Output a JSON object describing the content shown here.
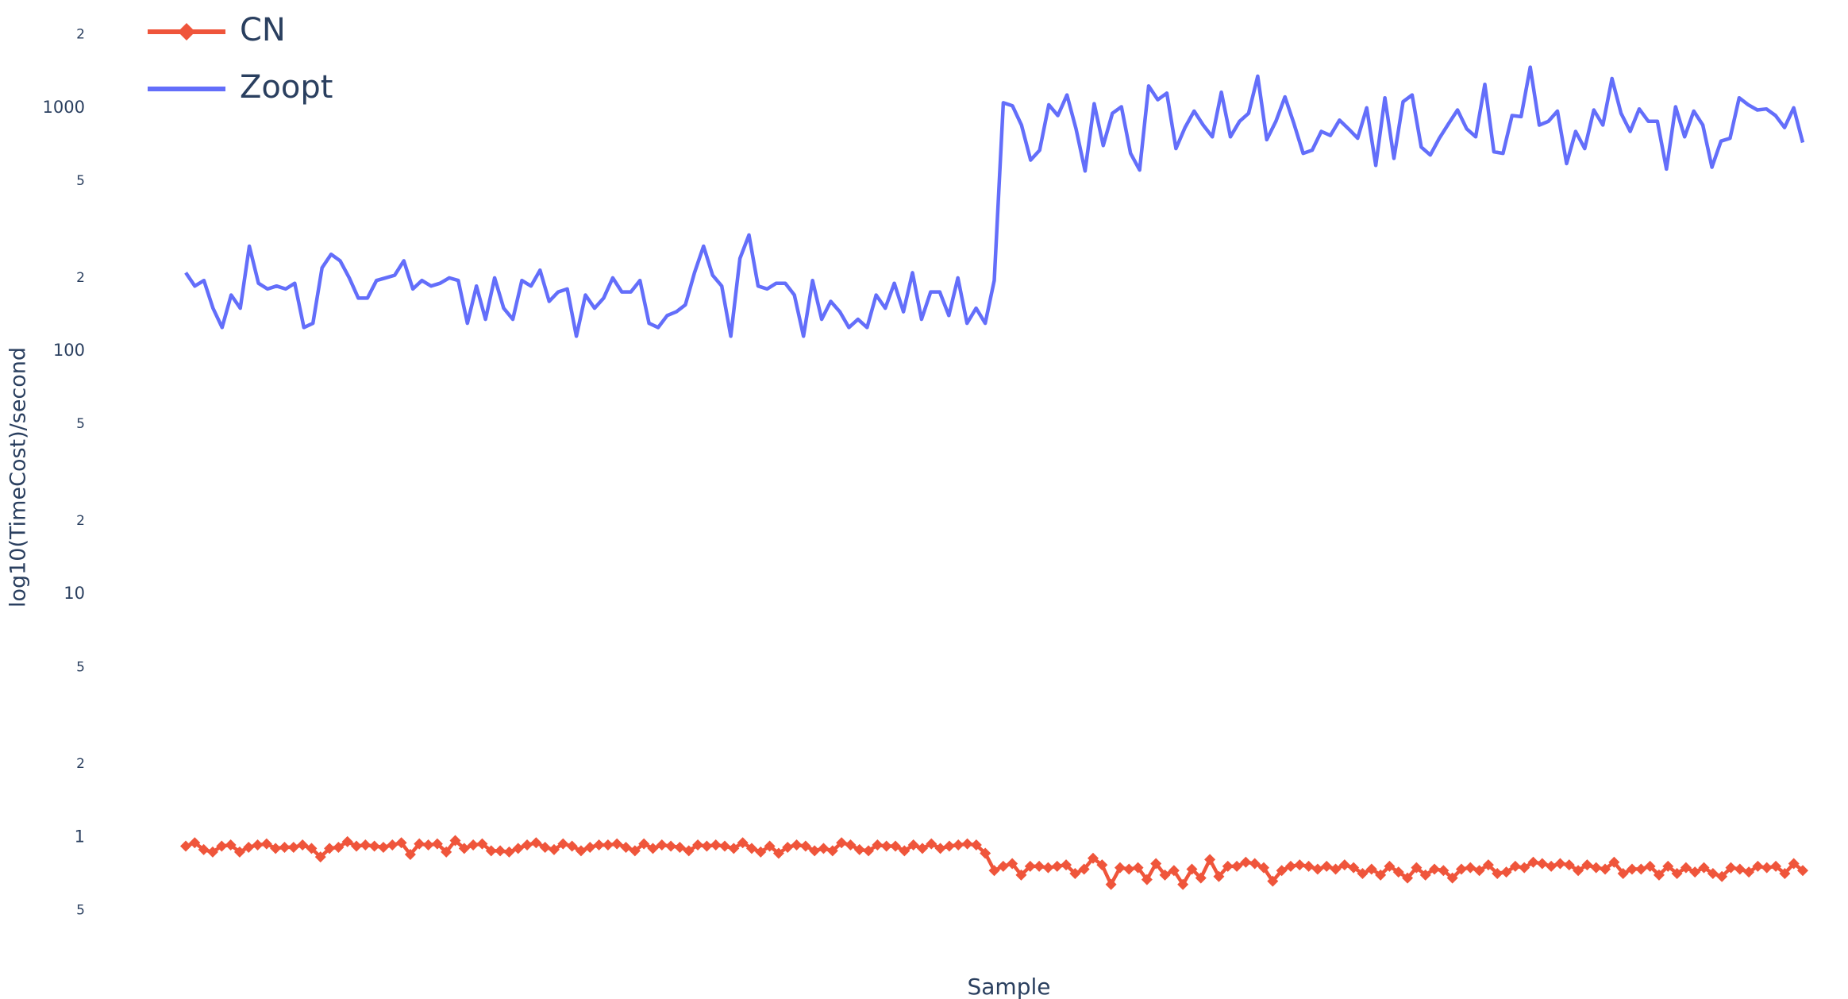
{
  "chart_data": {
    "type": "line",
    "x_label": "Sample",
    "y_label": "log10(TimeCost)/second",
    "ylog": true,
    "ylim": [
      0.35,
      2500
    ],
    "yticks": [
      {
        "value": 0.5,
        "label": "5"
      },
      1,
      {
        "value": 2,
        "label": "2"
      },
      {
        "value": 5,
        "label": "5"
      },
      10,
      {
        "value": 20,
        "label": "2"
      },
      {
        "value": 50,
        "label": "5"
      },
      100,
      {
        "value": 200,
        "label": "2"
      },
      {
        "value": 500,
        "label": "5"
      },
      1000,
      {
        "value": 2000,
        "label": "2"
      }
    ],
    "legend": "top-left",
    "series": [
      {
        "name": "CN",
        "color": "#ef553b",
        "marker": "diamond",
        "values": [
          0.92,
          0.95,
          0.89,
          0.87,
          0.92,
          0.93,
          0.87,
          0.91,
          0.93,
          0.94,
          0.9,
          0.91,
          0.91,
          0.93,
          0.9,
          0.83,
          0.9,
          0.91,
          0.96,
          0.92,
          0.93,
          0.92,
          0.91,
          0.93,
          0.95,
          0.85,
          0.94,
          0.93,
          0.94,
          0.87,
          0.97,
          0.9,
          0.93,
          0.94,
          0.88,
          0.88,
          0.87,
          0.9,
          0.93,
          0.95,
          0.91,
          0.89,
          0.94,
          0.92,
          0.88,
          0.91,
          0.93,
          0.93,
          0.94,
          0.91,
          0.88,
          0.94,
          0.9,
          0.93,
          0.92,
          0.91,
          0.88,
          0.93,
          0.92,
          0.93,
          0.92,
          0.9,
          0.95,
          0.9,
          0.87,
          0.92,
          0.86,
          0.91,
          0.93,
          0.92,
          0.88,
          0.9,
          0.88,
          0.95,
          0.93,
          0.89,
          0.88,
          0.93,
          0.92,
          0.92,
          0.88,
          0.93,
          0.9,
          0.94,
          0.9,
          0.92,
          0.93,
          0.94,
          0.93,
          0.86,
          0.73,
          0.76,
          0.78,
          0.7,
          0.76,
          0.76,
          0.75,
          0.76,
          0.77,
          0.71,
          0.74,
          0.82,
          0.77,
          0.64,
          0.75,
          0.74,
          0.75,
          0.67,
          0.78,
          0.7,
          0.73,
          0.64,
          0.74,
          0.68,
          0.81,
          0.69,
          0.76,
          0.76,
          0.79,
          0.78,
          0.75,
          0.66,
          0.73,
          0.76,
          0.77,
          0.76,
          0.74,
          0.76,
          0.74,
          0.77,
          0.75,
          0.71,
          0.74,
          0.7,
          0.76,
          0.72,
          0.68,
          0.75,
          0.7,
          0.74,
          0.73,
          0.68,
          0.74,
          0.75,
          0.73,
          0.77,
          0.71,
          0.72,
          0.76,
          0.75,
          0.79,
          0.78,
          0.76,
          0.78,
          0.77,
          0.73,
          0.77,
          0.75,
          0.74,
          0.79,
          0.71,
          0.74,
          0.74,
          0.76,
          0.7,
          0.76,
          0.71,
          0.75,
          0.72,
          0.75,
          0.71,
          0.69,
          0.75,
          0.74,
          0.72,
          0.76,
          0.75,
          0.76,
          0.71,
          0.78,
          0.73
        ]
      },
      {
        "name": "Zoopt",
        "color": "#636efa",
        "values": [
          210,
          185,
          195,
          150,
          125,
          170,
          150,
          270,
          190,
          180,
          185,
          180,
          190,
          125,
          130,
          220,
          250,
          235,
          200,
          165,
          165,
          195,
          200,
          205,
          235,
          180,
          195,
          185,
          190,
          200,
          195,
          130,
          185,
          135,
          200,
          150,
          135,
          195,
          185,
          215,
          160,
          175,
          180,
          115,
          170,
          150,
          165,
          200,
          175,
          175,
          195,
          130,
          125,
          140,
          145,
          155,
          210,
          270,
          205,
          185,
          115,
          240,
          300,
          185,
          180,
          190,
          190,
          170,
          115,
          195,
          135,
          160,
          145,
          125,
          135,
          125,
          170,
          150,
          190,
          145,
          210,
          135,
          175,
          175,
          140,
          200,
          130,
          150,
          130,
          195,
          1050,
          1020,
          850,
          610,
          670,
          1030,
          930,
          1130,
          820,
          550,
          1040,
          700,
          950,
          1010,
          650,
          555,
          1230,
          1080,
          1150,
          680,
          830,
          970,
          850,
          760,
          1160,
          760,
          880,
          950,
          1350,
          740,
          880,
          1110,
          860,
          650,
          670,
          800,
          770,
          890,
          820,
          750,
          1000,
          580,
          1100,
          620,
          1060,
          1130,
          690,
          640,
          750,
          860,
          980,
          820,
          760,
          1250,
          660,
          650,
          930,
          920,
          1470,
          850,
          880,
          970,
          590,
          800,
          680,
          980,
          850,
          1320,
          950,
          800,
          990,
          880,
          880,
          560,
          1010,
          760,
          970,
          850,
          570,
          730,
          750,
          1100,
          1030,
          980,
          990,
          930,
          830,
          1000,
          720
        ]
      }
    ]
  }
}
